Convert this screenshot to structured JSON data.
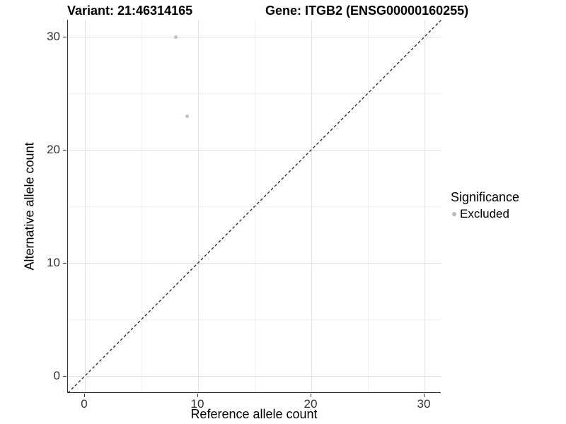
{
  "chart_data": {
    "type": "scatter",
    "title": {
      "left": "Variant: 21:46314165",
      "right": "Gene: ITGB2 (ENSG00000160255)"
    },
    "xlabel": "Reference allele count",
    "ylabel": "Alternative allele count",
    "xlim": [
      -1.5,
      31.5
    ],
    "ylim": [
      -1.5,
      31.5
    ],
    "x_ticks": [
      0,
      10,
      20,
      30
    ],
    "y_ticks": [
      0,
      10,
      20,
      30
    ],
    "x_minor_ticks": [
      5,
      15,
      25
    ],
    "y_minor_ticks": [
      5,
      15,
      25
    ],
    "grid": "on",
    "series": [
      {
        "name": "Excluded",
        "marker": "circle",
        "color": "#c0c0c0",
        "points": [
          {
            "x": 8,
            "y": 30
          },
          {
            "x": 9,
            "y": 23
          }
        ]
      }
    ],
    "reference_line": {
      "type": "identity",
      "equation": "y = x",
      "style": "dashed",
      "color": "#1a1a1a"
    },
    "legend": {
      "title": "Significance",
      "position": "right",
      "items": [
        {
          "label": "Excluded",
          "color": "#b9b9b9",
          "marker": "circle"
        }
      ]
    }
  },
  "colors": {
    "background": "#ffffff",
    "grid_major": "#e3e3e3",
    "grid_minor": "#efefef",
    "axis_line": "#333333",
    "tick_label": "#303030",
    "title_text": "#000000"
  }
}
